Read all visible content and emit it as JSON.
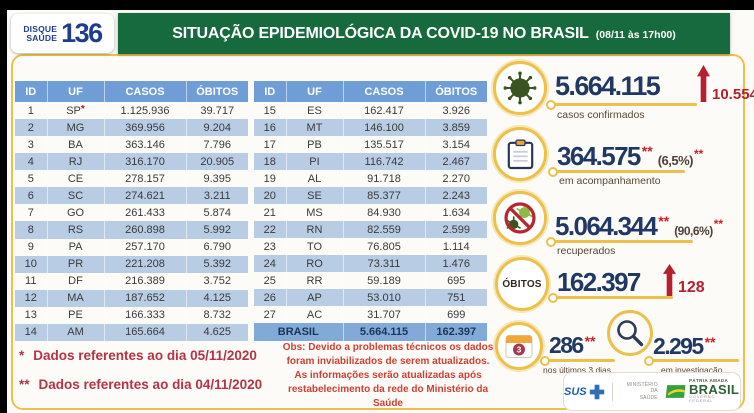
{
  "header": {
    "hotline": {
      "label_line1": "DISQUE",
      "label_line2": "SAÚDE",
      "number": "136"
    },
    "title": "SITUAÇÃO EPIDEMIOLÓGICA DA COVID-19 NO BRASIL",
    "timestamp": "(08/11 às 17h00)"
  },
  "tables": {
    "columns": [
      "ID",
      "UF",
      "CASOS",
      "ÓBITOS"
    ],
    "left_rows": [
      {
        "id": "1",
        "uf": "SP",
        "note": "*",
        "casos": "1.125.936",
        "obitos": "39.717"
      },
      {
        "id": "2",
        "uf": "MG",
        "casos": "369.956",
        "obitos": "9.204"
      },
      {
        "id": "3",
        "uf": "BA",
        "casos": "363.146",
        "obitos": "7.796"
      },
      {
        "id": "4",
        "uf": "RJ",
        "casos": "316.170",
        "obitos": "20.905"
      },
      {
        "id": "5",
        "uf": "CE",
        "casos": "278.157",
        "obitos": "9.395"
      },
      {
        "id": "6",
        "uf": "SC",
        "casos": "274.621",
        "obitos": "3.211"
      },
      {
        "id": "7",
        "uf": "GO",
        "casos": "261.433",
        "obitos": "5.874"
      },
      {
        "id": "8",
        "uf": "RS",
        "casos": "260.898",
        "obitos": "5.992"
      },
      {
        "id": "9",
        "uf": "PA",
        "casos": "257.170",
        "obitos": "6.790"
      },
      {
        "id": "10",
        "uf": "PR",
        "casos": "221.208",
        "obitos": "5.392"
      },
      {
        "id": "11",
        "uf": "DF",
        "casos": "216.389",
        "obitos": "3.752"
      },
      {
        "id": "12",
        "uf": "MA",
        "casos": "187.652",
        "obitos": "4.125"
      },
      {
        "id": "13",
        "uf": "PE",
        "casos": "166.333",
        "obitos": "8.732"
      },
      {
        "id": "14",
        "uf": "AM",
        "casos": "165.664",
        "obitos": "4.625"
      }
    ],
    "right_rows": [
      {
        "id": "15",
        "uf": "ES",
        "casos": "162.417",
        "obitos": "3.926"
      },
      {
        "id": "16",
        "uf": "MT",
        "casos": "146.100",
        "obitos": "3.859"
      },
      {
        "id": "17",
        "uf": "PB",
        "casos": "135.517",
        "obitos": "3.154"
      },
      {
        "id": "18",
        "uf": "PI",
        "casos": "116.742",
        "obitos": "2.467"
      },
      {
        "id": "19",
        "uf": "AL",
        "casos": "91.718",
        "obitos": "2.270"
      },
      {
        "id": "20",
        "uf": "SE",
        "casos": "85.377",
        "obitos": "2.243"
      },
      {
        "id": "21",
        "uf": "MS",
        "casos": "84.930",
        "obitos": "1.634"
      },
      {
        "id": "22",
        "uf": "RN",
        "casos": "82.559",
        "obitos": "2.599"
      },
      {
        "id": "23",
        "uf": "TO",
        "casos": "76.805",
        "obitos": "1.114"
      },
      {
        "id": "24",
        "uf": "RO",
        "casos": "73.311",
        "obitos": "1.476"
      },
      {
        "id": "25",
        "uf": "RR",
        "casos": "59.189",
        "obitos": "695"
      },
      {
        "id": "26",
        "uf": "AP",
        "casos": "53.010",
        "obitos": "751"
      },
      {
        "id": "27",
        "uf": "AC",
        "casos": "31.707",
        "obitos": "699"
      }
    ],
    "total": {
      "label": "BRASIL",
      "casos": "5.664.115",
      "obitos": "162.397"
    }
  },
  "stats": {
    "confirmed": {
      "value": "5.664.115",
      "delta": "10.554",
      "label": "casos confirmados"
    },
    "monitoring": {
      "value": "364.575",
      "asterisks": "**",
      "percent": "(6,5%)",
      "percent_asterisks": "**",
      "label": "em acompanhamento"
    },
    "recovered": {
      "value": "5.064.344",
      "asterisks": "**",
      "percent": "(90,6%)",
      "percent_asterisks": "**",
      "label": "recuperados"
    },
    "deaths": {
      "badge": "ÓBITOS",
      "value": "162.397",
      "delta": "128"
    },
    "last_3_days": {
      "value": "286",
      "asterisks": "**",
      "label": "nos últimos 3 dias",
      "calendar_day": "3"
    },
    "under_investigation": {
      "value": "2.295",
      "asterisks": "**",
      "label": "em investigação"
    }
  },
  "footnotes": [
    {
      "marker": "*",
      "text": "Dados referentes ao dia 05/11/2020"
    },
    {
      "marker": "**",
      "text": "Dados referentes ao dia 04/11/2020"
    }
  ],
  "observation": "Obs: Devido a problemas técnicos os dados foram inviabilizados de serem atualizados. As informações serão atualizadas após restabelecimento da rede do Ministério da Saúde",
  "footer_logos": {
    "sus": "SUS",
    "ministry_line1": "MINISTÉRIO DA",
    "ministry_line2": "SAÚDE",
    "brasil_tagline": "PÁTRIA AMADA",
    "brasil": "BRASIL",
    "brasil_subline": "GOVERNO FEDERAL"
  },
  "icons": {
    "confirmed": "virus-icon",
    "monitoring": "clipboard-icon",
    "recovered": "no-virus-icon",
    "deaths": "obitos-badge",
    "last_3_days": "calendar-icon",
    "under_investigation": "magnifier-icon",
    "delta": "up-arrow-icon"
  },
  "colors": {
    "banner_green": "#176a3e",
    "logo_blue": "#1d3d8f",
    "table_header_blue": "#6f9ed6",
    "row_stripe_blue": "#b8cce4",
    "total_row_blue": "#82aad8",
    "number_navy": "#1f3864",
    "alert_red": "#b51f2e",
    "asterisk_red": "#cf2026",
    "accent_gold": "#ecc04a",
    "footnote_red": "#b53345",
    "obs_red": "#cf3f33"
  }
}
